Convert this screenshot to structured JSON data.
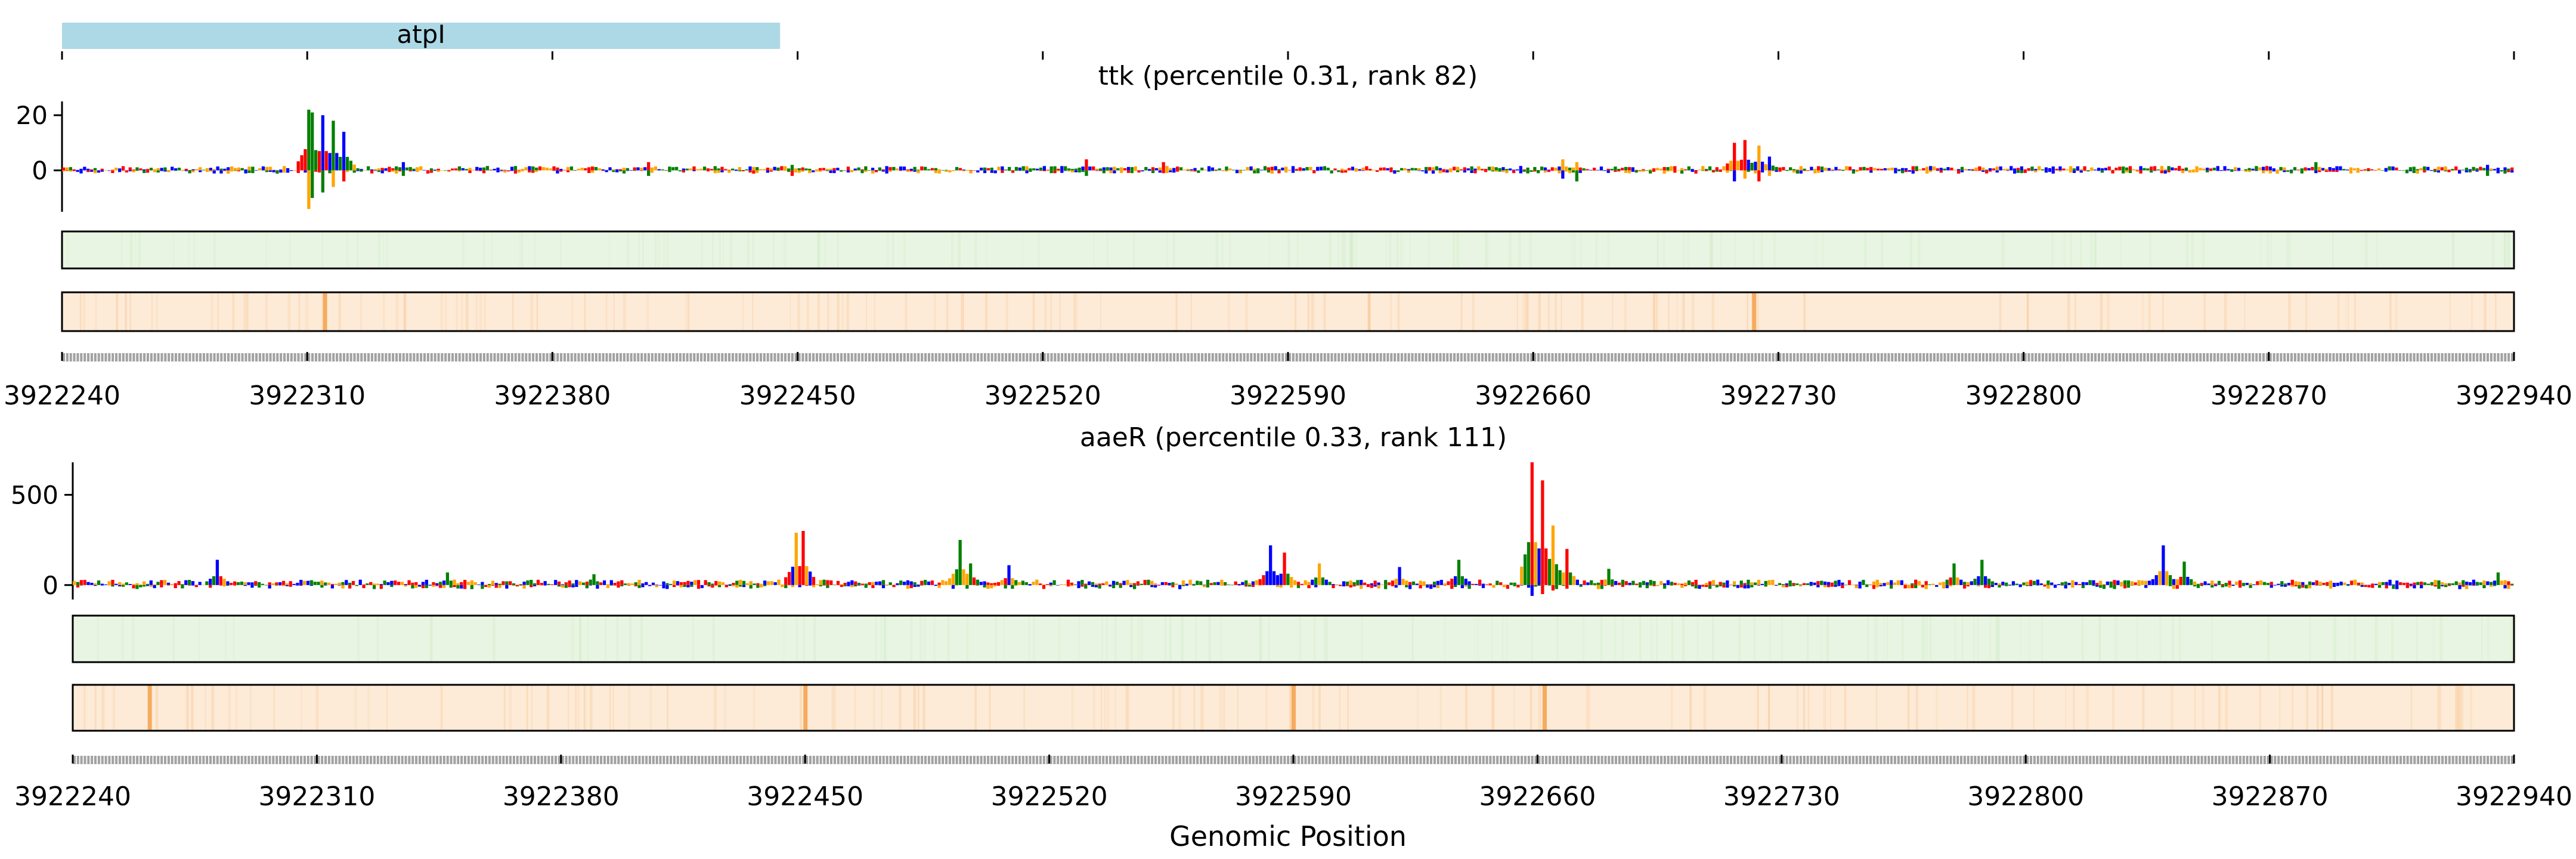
{
  "annotation": {
    "gene_label": "atpI",
    "start": 3922240,
    "end": 3922445,
    "color": "#ADD8E6"
  },
  "x_axis": {
    "label": "Genomic Position",
    "range": [
      3922240,
      3922940
    ],
    "ticks": [
      3922240,
      3922310,
      3922380,
      3922450,
      3922520,
      3922590,
      3922660,
      3922730,
      3922800,
      3922870,
      3922940
    ],
    "tick_labels": [
      "3922240",
      "3922310",
      "3922380",
      "3922450",
      "3922520",
      "3922590",
      "3922660",
      "3922730",
      "3922800",
      "3922870",
      "3922940"
    ]
  },
  "colors": {
    "A": "#008000",
    "C": "#0000ff",
    "G": "#ffa500",
    "T": "#ff0000",
    "track1": "#e8f5e2",
    "track2": "#fdebd8",
    "hotspot": "#f5a04a"
  },
  "chart_data": [
    {
      "type": "bar",
      "title": "ttk (percentile 0.31, rank 82)",
      "ylim": [
        -15,
        25
      ],
      "yticks": [
        0,
        20
      ],
      "ytick_labels": [
        "0",
        "20"
      ],
      "peaks": [
        {
          "x": 3922310,
          "value": 22,
          "min": -14
        },
        {
          "x": 3922311,
          "value": 21,
          "min": -10
        },
        {
          "x": 3922314,
          "value": 20,
          "min": -8
        },
        {
          "x": 3922317,
          "value": 18,
          "min": -6
        },
        {
          "x": 3922320,
          "value": 14,
          "min": -4
        },
        {
          "x": 3922337,
          "value": 3,
          "min": -2
        },
        {
          "x": 3922407,
          "value": 3,
          "min": -2
        },
        {
          "x": 3922448,
          "value": 2,
          "min": -2
        },
        {
          "x": 3922532,
          "value": 4,
          "min": -2
        },
        {
          "x": 3922554,
          "value": 3,
          "min": -1
        },
        {
          "x": 3922668,
          "value": 4,
          "min": -3
        },
        {
          "x": 3922672,
          "value": 3,
          "min": -4
        },
        {
          "x": 3922717,
          "value": 10,
          "min": -4
        },
        {
          "x": 3922720,
          "value": 11,
          "min": -3
        },
        {
          "x": 3922724,
          "value": 9,
          "min": -4
        },
        {
          "x": 3922727,
          "value": 5,
          "min": -2
        },
        {
          "x": 3922883,
          "value": 3,
          "min": -1
        },
        {
          "x": 3922932,
          "value": 2,
          "min": -2
        }
      ],
      "hotspots": [
        3922315,
        3922723
      ]
    },
    {
      "type": "bar",
      "title": "aaeR (percentile 0.33, rank 111)",
      "ylim": [
        -80,
        680
      ],
      "yticks": [
        0,
        500
      ],
      "ytick_labels": [
        "0",
        "500"
      ],
      "peaks": [
        {
          "x": 3922281,
          "value": 140,
          "min": 0
        },
        {
          "x": 3922347,
          "value": 70,
          "min": 0
        },
        {
          "x": 3922389,
          "value": 60,
          "min": 0
        },
        {
          "x": 3922447,
          "value": 290,
          "min": 0
        },
        {
          "x": 3922449,
          "value": 300,
          "min": 0
        },
        {
          "x": 3922494,
          "value": 250,
          "min": 0
        },
        {
          "x": 3922497,
          "value": 120,
          "min": 0
        },
        {
          "x": 3922508,
          "value": 110,
          "min": 0
        },
        {
          "x": 3922583,
          "value": 220,
          "min": 0
        },
        {
          "x": 3922587,
          "value": 180,
          "min": 0
        },
        {
          "x": 3922597,
          "value": 120,
          "min": 0
        },
        {
          "x": 3922620,
          "value": 100,
          "min": 0
        },
        {
          "x": 3922637,
          "value": 140,
          "min": 0
        },
        {
          "x": 3922658,
          "value": 680,
          "min": -60
        },
        {
          "x": 3922661,
          "value": 580,
          "min": -50
        },
        {
          "x": 3922664,
          "value": 330,
          "min": -30
        },
        {
          "x": 3922668,
          "value": 200,
          "min": -20
        },
        {
          "x": 3922680,
          "value": 90,
          "min": 0
        },
        {
          "x": 3922779,
          "value": 120,
          "min": 0
        },
        {
          "x": 3922787,
          "value": 140,
          "min": 0
        },
        {
          "x": 3922839,
          "value": 220,
          "min": 0
        },
        {
          "x": 3922845,
          "value": 130,
          "min": 0
        },
        {
          "x": 3922935,
          "value": 70,
          "min": 0
        }
      ],
      "hotspots": [
        3922262,
        3922450,
        3922590,
        3922662
      ]
    }
  ]
}
